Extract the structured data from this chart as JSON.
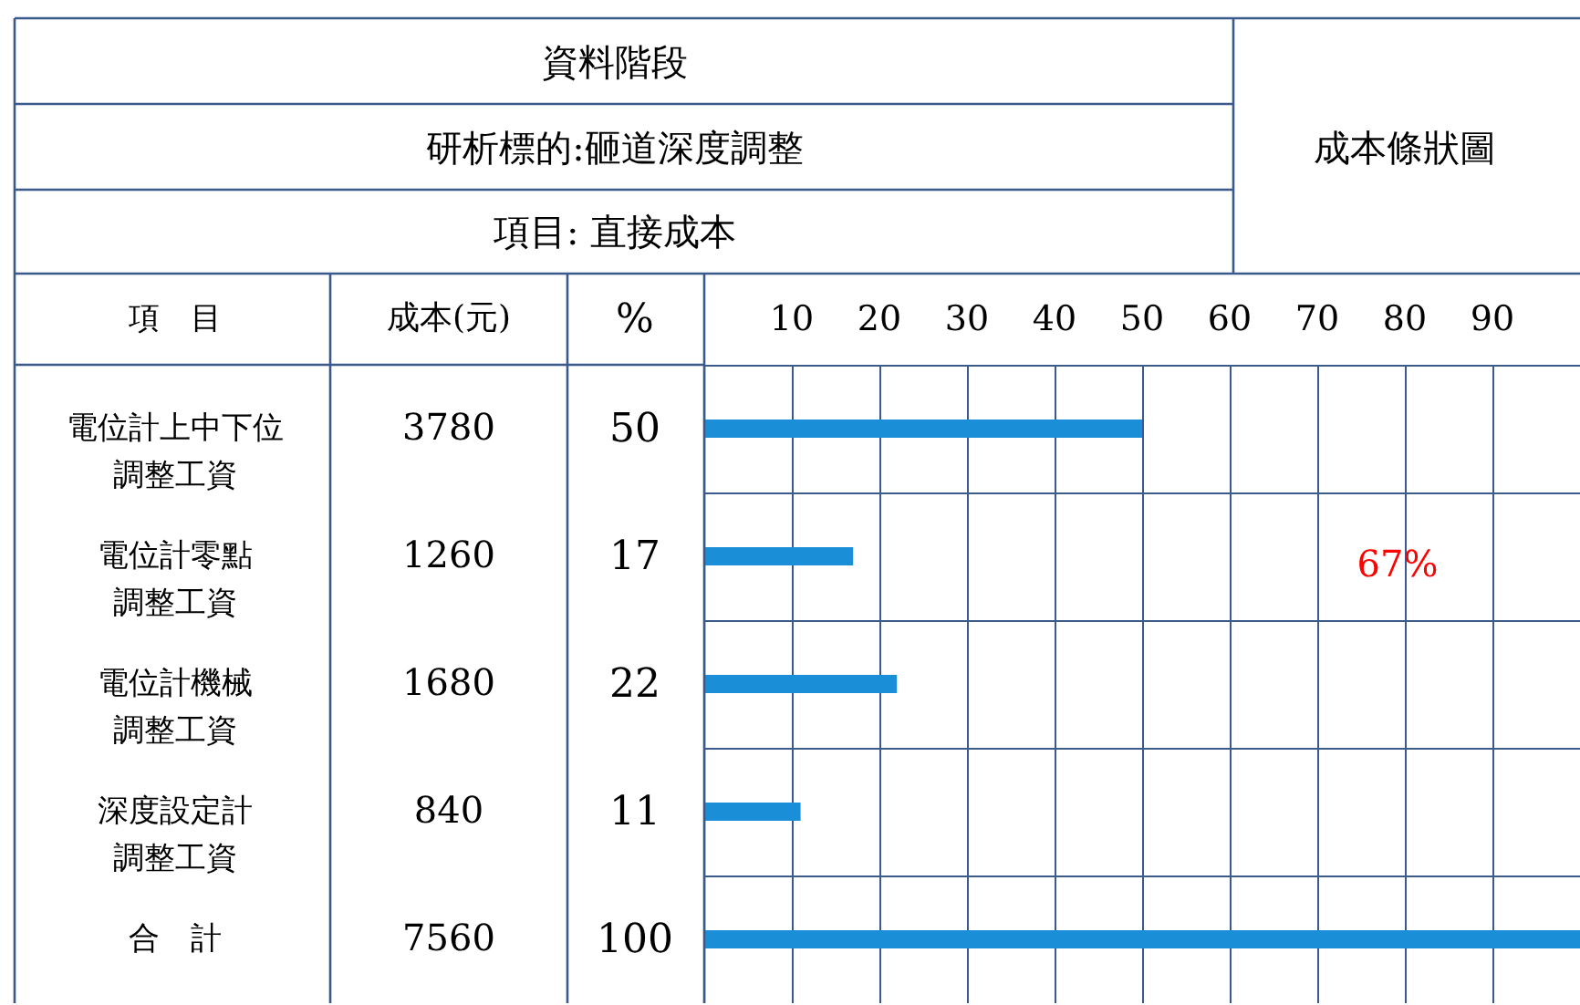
{
  "chart_data": {
    "type": "bar",
    "orientation": "horizontal",
    "title": "資料階段",
    "subtitle": "研析標的:砸道深度調整",
    "categories": [
      "電位計上中下位調整工資",
      "電位計零點調整工資",
      "電位計機械調整工資",
      "深度設定計調整工資",
      "合　計"
    ],
    "values": [
      50,
      17,
      22,
      11,
      100
    ],
    "color": "#1a8fd8",
    "xlim": [
      0,
      100
    ],
    "x2lim": [
      0,
      100
    ],
    "x2ticks": [
      10,
      20,
      30,
      40,
      50,
      60,
      70,
      80,
      90
    ],
    "grid": true,
    "data_labels": true,
    "tick_labels": "x",
    "annotations": [
      "項目:  直接成本",
      "成本條狀圖",
      "項　目",
      "成本(元)",
      "%",
      "3780",
      "1260",
      "1680",
      "840",
      "7560",
      "67%"
    ]
  }
}
